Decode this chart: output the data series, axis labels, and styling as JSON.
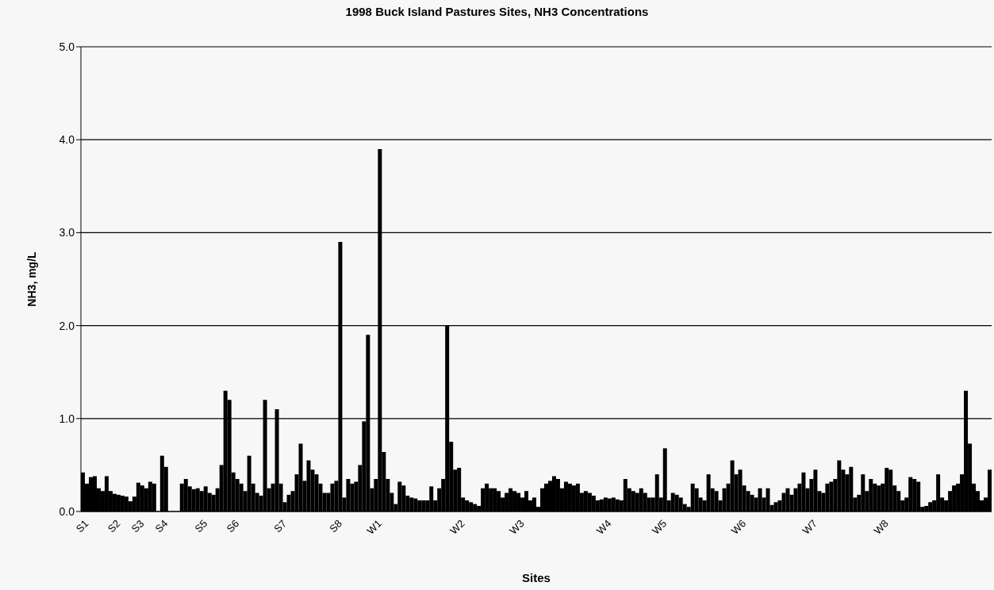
{
  "chart_data": {
    "type": "bar",
    "title": "1998 Buck Island Pastures Sites, NH3 Concentrations",
    "xlabel": "Sites",
    "ylabel": "NH3, mg/L",
    "categories": [
      "S1",
      null,
      null,
      null,
      null,
      null,
      null,
      null,
      "S2",
      null,
      null,
      null,
      null,
      null,
      "S3",
      null,
      null,
      null,
      null,
      null,
      "S4",
      null,
      null,
      null,
      null,
      null,
      null,
      null,
      null,
      null,
      "S5",
      null,
      null,
      null,
      null,
      null,
      null,
      null,
      "S6",
      null,
      null,
      null,
      null,
      null,
      null,
      null,
      null,
      null,
      null,
      null,
      "S7",
      null,
      null,
      null,
      null,
      null,
      null,
      null,
      null,
      null,
      null,
      null,
      null,
      null,
      "S8",
      null,
      null,
      null,
      null,
      null,
      null,
      null,
      null,
      null,
      "W1",
      null,
      null,
      null,
      null,
      null,
      null,
      null,
      null,
      null,
      null,
      null,
      null,
      null,
      null,
      null,
      null,
      null,
      null,
      null,
      null,
      "W2",
      null,
      null,
      null,
      null,
      null,
      null,
      null,
      null,
      null,
      null,
      null,
      null,
      null,
      null,
      "W3",
      null,
      null,
      null,
      null,
      null,
      null,
      null,
      null,
      null,
      null,
      null,
      null,
      null,
      null,
      null,
      null,
      null,
      null,
      null,
      null,
      null,
      "W4",
      null,
      null,
      null,
      null,
      null,
      null,
      null,
      null,
      null,
      null,
      null,
      null,
      null,
      "W5",
      null,
      null,
      null,
      null,
      null,
      null,
      null,
      null,
      null,
      null,
      null,
      null,
      null,
      null,
      null,
      null,
      null,
      null,
      null,
      "W6",
      null,
      null,
      null,
      null,
      null,
      null,
      null,
      null,
      null,
      null,
      null,
      null,
      null,
      null,
      null,
      null,
      null,
      "W7",
      null,
      null,
      null,
      null,
      null,
      null,
      null,
      null,
      null,
      null,
      null,
      null,
      null,
      null,
      null,
      null,
      null,
      "W8",
      null,
      null,
      null,
      null,
      null,
      null,
      null,
      null,
      null,
      null,
      null,
      null,
      null,
      null,
      null,
      null,
      null,
      null,
      null,
      null,
      null,
      null,
      null,
      null,
      null,
      null,
      null
    ],
    "values": [
      0.42,
      0.3,
      0.37,
      0.38,
      0.25,
      0.22,
      0.38,
      0.22,
      0.19,
      0.18,
      0.17,
      0.16,
      0.11,
      0.16,
      0.31,
      0.28,
      0.25,
      0.32,
      0.3,
      0,
      0.6,
      0.48,
      0,
      0,
      0,
      0.3,
      0.35,
      0.27,
      0.24,
      0.25,
      0.22,
      0.27,
      0.2,
      0.18,
      0.25,
      0.5,
      1.3,
      1.2,
      0.42,
      0.35,
      0.3,
      0.22,
      0.6,
      0.3,
      0.2,
      0.17,
      1.2,
      0.25,
      0.3,
      1.1,
      0.3,
      0.1,
      0.18,
      0.22,
      0.4,
      0.73,
      0.33,
      0.55,
      0.45,
      0.4,
      0.3,
      0.2,
      0.2,
      0.3,
      0.33,
      2.9,
      0.15,
      0.35,
      0.3,
      0.32,
      0.5,
      0.97,
      1.9,
      0.25,
      0.35,
      3.9,
      0.64,
      0.35,
      0.2,
      0.08,
      0.32,
      0.28,
      0.17,
      0.15,
      0.14,
      0.12,
      0.12,
      0.12,
      0.27,
      0.12,
      0.25,
      0.35,
      2.0,
      0.75,
      0.45,
      0.47,
      0.15,
      0.12,
      0.1,
      0.08,
      0.06,
      0.25,
      0.3,
      0.25,
      0.25,
      0.22,
      0.15,
      0.2,
      0.25,
      0.22,
      0.2,
      0.15,
      0.22,
      0.12,
      0.15,
      0.05,
      0.25,
      0.3,
      0.33,
      0.38,
      0.35,
      0.25,
      0.32,
      0.3,
      0.28,
      0.3,
      0.2,
      0.22,
      0.2,
      0.17,
      0.12,
      0.13,
      0.15,
      0.14,
      0.15,
      0.13,
      0.12,
      0.35,
      0.25,
      0.22,
      0.2,
      0.25,
      0.2,
      0.15,
      0.15,
      0.4,
      0.15,
      0.68,
      0.12,
      0.2,
      0.18,
      0.15,
      0.08,
      0.05,
      0.3,
      0.25,
      0.15,
      0.12,
      0.4,
      0.25,
      0.22,
      0.12,
      0.25,
      0.3,
      0.55,
      0.4,
      0.45,
      0.28,
      0.22,
      0.18,
      0.15,
      0.25,
      0.15,
      0.25,
      0.07,
      0.1,
      0.12,
      0.2,
      0.25,
      0.18,
      0.25,
      0.3,
      0.42,
      0.25,
      0.35,
      0.45,
      0.22,
      0.2,
      0.3,
      0.32,
      0.35,
      0.55,
      0.45,
      0.4,
      0.48,
      0.15,
      0.18,
      0.4,
      0.22,
      0.35,
      0.3,
      0.28,
      0.3,
      0.47,
      0.45,
      0.28,
      0.22,
      0.12,
      0.15,
      0.37,
      0.35,
      0.32,
      0.05,
      0.06,
      0.1,
      0.12,
      0.4,
      0.15,
      0.12,
      0.22,
      0.28,
      0.3,
      0.4,
      1.3,
      0.73,
      0.3,
      0.22,
      0.12,
      0.15,
      0.45
    ],
    "color": "#000000",
    "ylim": [
      0,
      5
    ],
    "yticks": [
      {
        "value": 0,
        "label": "0.0"
      },
      {
        "value": 1,
        "label": "1.0"
      },
      {
        "value": 2,
        "label": "2.0"
      },
      {
        "value": 3,
        "label": "3.0"
      },
      {
        "value": 4,
        "label": "4.0"
      },
      {
        "value": 5,
        "label": "5.0"
      }
    ],
    "grid": "y"
  }
}
